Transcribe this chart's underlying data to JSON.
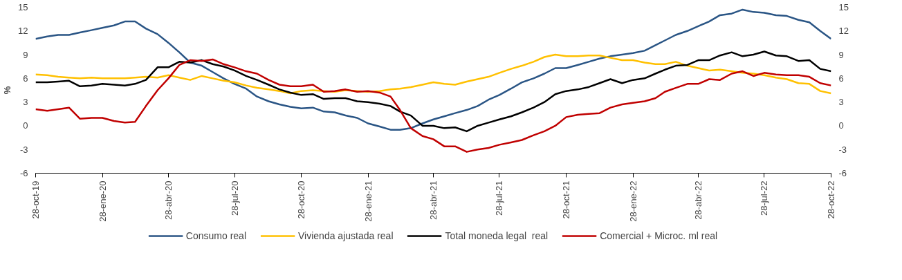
{
  "chart_data": {
    "type": "line",
    "ylabel": "%",
    "legend": "bottom",
    "grid": false,
    "x": [
      "2019-10-28",
      "2019-11-13",
      "2019-11-28",
      "2019-12-13",
      "2019-12-28",
      "2020-01-13",
      "2020-01-28",
      "2020-02-13",
      "2020-02-28",
      "2020-03-13",
      "2020-03-28",
      "2020-04-13",
      "2020-04-28",
      "2020-05-13",
      "2020-05-28",
      "2020-06-13",
      "2020-06-28",
      "2020-07-13",
      "2020-07-28",
      "2020-08-13",
      "2020-08-28",
      "2020-09-13",
      "2020-09-28",
      "2020-10-13",
      "2020-10-28",
      "2020-11-13",
      "2020-11-28",
      "2020-12-13",
      "2020-12-28",
      "2021-01-13",
      "2021-01-28",
      "2021-02-13",
      "2021-02-28",
      "2021-03-13",
      "2021-03-28",
      "2021-04-13",
      "2021-04-28",
      "2021-05-13",
      "2021-05-28",
      "2021-06-13",
      "2021-06-28",
      "2021-07-13",
      "2021-07-28",
      "2021-08-13",
      "2021-08-28",
      "2021-09-13",
      "2021-09-28",
      "2021-10-13",
      "2021-10-28",
      "2021-11-13",
      "2021-11-28",
      "2021-12-13",
      "2021-12-28",
      "2022-01-13",
      "2022-01-28",
      "2022-02-13",
      "2022-02-28",
      "2022-03-13",
      "2022-03-28",
      "2022-04-13",
      "2022-04-28",
      "2022-05-13",
      "2022-05-28",
      "2022-06-13",
      "2022-06-28",
      "2022-07-13",
      "2022-07-28",
      "2022-08-13",
      "2022-08-28",
      "2022-09-13",
      "2022-09-28",
      "2022-10-13",
      "2022-10-28"
    ],
    "xlim": [
      "2019-10-28",
      "2022-10-28"
    ],
    "xticks": [
      {
        "value": "2019-10-28",
        "label": "28-oct-19"
      },
      {
        "value": "2020-01-28",
        "label": "28-ene-20"
      },
      {
        "value": "2020-04-28",
        "label": "28-abr-20"
      },
      {
        "value": "2020-07-28",
        "label": "28-jul-20"
      },
      {
        "value": "2020-10-28",
        "label": "28-oct-20"
      },
      {
        "value": "2021-01-28",
        "label": "28-ene-21"
      },
      {
        "value": "2021-04-28",
        "label": "28-abr-21"
      },
      {
        "value": "2021-07-28",
        "label": "28-jul-21"
      },
      {
        "value": "2021-10-28",
        "label": "28-oct-21"
      },
      {
        "value": "2022-01-28",
        "label": "28-ene-22"
      },
      {
        "value": "2022-04-28",
        "label": "28-abr-22"
      },
      {
        "value": "2022-07-28",
        "label": "28-jul-22"
      },
      {
        "value": "2022-10-28",
        "label": "28-oct-22"
      }
    ],
    "ylim": [
      -6,
      15
    ],
    "yticks": [
      -6,
      -3,
      0,
      3,
      6,
      9,
      12,
      15
    ],
    "y2lim": [
      -6,
      15
    ],
    "y2ticks": [
      -6,
      -3,
      0,
      3,
      6,
      9,
      12,
      15
    ],
    "series": [
      {
        "name": "Consumo real",
        "color": "#2a5585",
        "values": [
          11.0,
          11.3,
          11.5,
          11.5,
          11.8,
          12.1,
          12.4,
          12.7,
          13.2,
          13.2,
          12.3,
          11.6,
          10.5,
          9.3,
          8.0,
          7.6,
          6.8,
          6.0,
          5.3,
          4.7,
          3.7,
          3.1,
          2.7,
          2.4,
          2.2,
          2.3,
          1.8,
          1.7,
          1.3,
          1.0,
          0.3,
          -0.1,
          -0.5,
          -0.5,
          -0.3,
          0.3,
          0.8,
          1.2,
          1.6,
          2.0,
          2.5,
          3.3,
          3.9,
          4.7,
          5.5,
          6.0,
          6.6,
          7.3,
          7.3,
          7.7,
          8.1,
          8.5,
          8.8,
          9.0,
          9.2,
          9.5,
          10.2,
          10.8,
          11.5,
          12.0,
          12.6,
          13.2,
          14.0,
          14.2,
          14.7,
          14.4,
          14.3,
          14.0,
          13.9,
          13.4,
          13.1,
          12.0,
          11.0
        ]
      },
      {
        "name": "Vivienda ajustada real",
        "color": "#ffc000",
        "values": [
          6.5,
          6.4,
          6.2,
          6.1,
          6.0,
          6.1,
          6.0,
          6.0,
          6.0,
          6.1,
          6.2,
          6.1,
          6.4,
          6.1,
          5.8,
          6.3,
          6.0,
          5.7,
          5.5,
          5.1,
          4.8,
          4.6,
          4.4,
          4.1,
          4.4,
          4.5,
          4.4,
          4.3,
          4.5,
          4.4,
          4.3,
          4.4,
          4.6,
          4.7,
          4.9,
          5.2,
          5.5,
          5.3,
          5.2,
          5.6,
          5.9,
          6.2,
          6.7,
          7.2,
          7.6,
          8.1,
          8.7,
          9.0,
          8.8,
          8.8,
          8.9,
          8.9,
          8.6,
          8.3,
          8.3,
          8.0,
          7.8,
          7.8,
          8.1,
          7.6,
          7.3,
          7.0,
          7.1,
          6.9,
          6.7,
          6.6,
          6.4,
          6.1,
          5.9,
          5.4,
          5.3,
          4.4,
          4.1
        ]
      },
      {
        "name": "Total moneda legal  real",
        "color": "#000000",
        "values": [
          5.5,
          5.5,
          5.6,
          5.7,
          5.0,
          5.1,
          5.3,
          5.2,
          5.1,
          5.3,
          5.8,
          7.4,
          7.4,
          8.1,
          8.0,
          8.3,
          7.8,
          7.5,
          7.0,
          6.3,
          5.8,
          5.2,
          4.6,
          4.2,
          3.9,
          4.0,
          3.4,
          3.5,
          3.5,
          3.1,
          3.0,
          2.8,
          2.5,
          1.8,
          1.3,
          0.0,
          0.0,
          -0.3,
          -0.2,
          -0.7,
          0.0,
          0.4,
          0.8,
          1.2,
          1.7,
          2.3,
          3.0,
          4.0,
          4.4,
          4.6,
          4.9,
          5.4,
          5.9,
          5.4,
          5.8,
          6.0,
          6.6,
          7.1,
          7.6,
          7.7,
          8.3,
          8.3,
          8.9,
          9.3,
          8.8,
          9.0,
          9.4,
          8.9,
          8.8,
          8.2,
          8.3,
          7.2,
          6.9
        ]
      },
      {
        "name": "Comercial + Microc. ml real",
        "color": "#c00000",
        "values": [
          2.1,
          1.9,
          2.1,
          2.3,
          0.9,
          1.0,
          1.0,
          0.6,
          0.4,
          0.5,
          2.5,
          4.5,
          6.0,
          7.7,
          8.3,
          8.2,
          8.4,
          7.8,
          7.4,
          6.9,
          6.6,
          5.8,
          5.2,
          5.0,
          5.0,
          5.2,
          4.3,
          4.4,
          4.6,
          4.3,
          4.4,
          4.2,
          3.7,
          2.0,
          -0.3,
          -1.3,
          -1.7,
          -2.6,
          -2.6,
          -3.3,
          -3.0,
          -2.8,
          -2.4,
          -2.1,
          -1.8,
          -1.2,
          -0.7,
          0.0,
          1.1,
          1.4,
          1.5,
          1.6,
          2.3,
          2.7,
          2.9,
          3.1,
          3.5,
          4.3,
          4.8,
          5.3,
          5.3,
          5.9,
          5.8,
          6.6,
          6.9,
          6.3,
          6.7,
          6.5,
          6.4,
          6.4,
          6.2,
          5.4,
          5.1
        ]
      }
    ]
  }
}
